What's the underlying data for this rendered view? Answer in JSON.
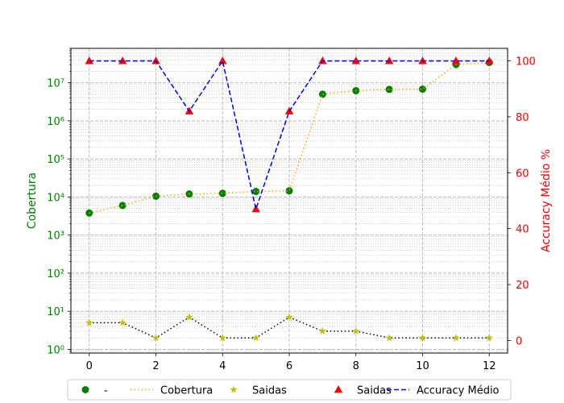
{
  "chart_data": {
    "type": "line",
    "x": [
      0,
      1,
      2,
      3,
      4,
      5,
      6,
      7,
      8,
      9,
      10,
      11,
      12
    ],
    "x_ticks": [
      0,
      2,
      4,
      6,
      8,
      10,
      12
    ],
    "xlim": [
      -0.55,
      12.55
    ],
    "left_axis": {
      "label": "Cobertura",
      "scale": "log",
      "ylim": [
        0.8,
        80000000
      ],
      "ticks": [
        1,
        10,
        100,
        1000,
        10000,
        100000,
        1000000,
        10000000
      ],
      "tick_labels": [
        "10⁰",
        "10¹",
        "10²",
        "10³",
        "10⁴",
        "10⁵",
        "10⁶",
        "10⁷"
      ],
      "color": "#008000"
    },
    "right_axis": {
      "label": "Accuracy Médio %",
      "scale": "linear",
      "ylim": [
        -4.5,
        104.5
      ],
      "ticks": [
        0,
        20,
        40,
        60,
        80,
        100
      ],
      "tick_labels": [
        "0",
        "20",
        "40",
        "60",
        "80",
        "100"
      ],
      "color": "#ff0000"
    },
    "series": [
      {
        "name": "-",
        "axis": "left",
        "kind": "marker",
        "marker": "circle",
        "color": "#008000",
        "values": [
          3800,
          6000,
          10500,
          12000,
          12500,
          14000,
          14500,
          5000000,
          6200000,
          6700000,
          6800000,
          30000000,
          34000000
        ]
      },
      {
        "name": "Cobertura",
        "axis": "left",
        "kind": "line",
        "linestyle": "dotted",
        "color": "#ffa500",
        "values": [
          3800,
          6000,
          10500,
          12000,
          12500,
          14000,
          14500,
          5000000,
          6200000,
          6700000,
          6800000,
          30000000,
          34000000
        ]
      },
      {
        "name": "Saidas",
        "axis": "left",
        "kind": "marker+line",
        "marker": "star",
        "color": "#bfbf00",
        "line_color": "#000000",
        "linestyle": "dotted",
        "values": [
          5,
          5,
          2,
          7,
          2,
          2,
          7,
          3,
          3,
          2,
          2,
          2,
          2
        ]
      },
      {
        "name": "Saidas",
        "axis": "right",
        "kind": "marker",
        "marker": "triangle",
        "color": "#ff0000",
        "values": [
          100,
          100,
          100,
          82,
          100,
          47,
          82,
          100,
          100,
          100,
          100,
          100,
          100
        ]
      },
      {
        "name": "Accuracy Médio",
        "axis": "right",
        "kind": "line",
        "linestyle": "dashed",
        "color": "#0000ff",
        "values": [
          100,
          100,
          100,
          82,
          100,
          47,
          82,
          100,
          100,
          100,
          100,
          100,
          100
        ]
      }
    ],
    "grid": true,
    "legend_placement": "bottom"
  }
}
